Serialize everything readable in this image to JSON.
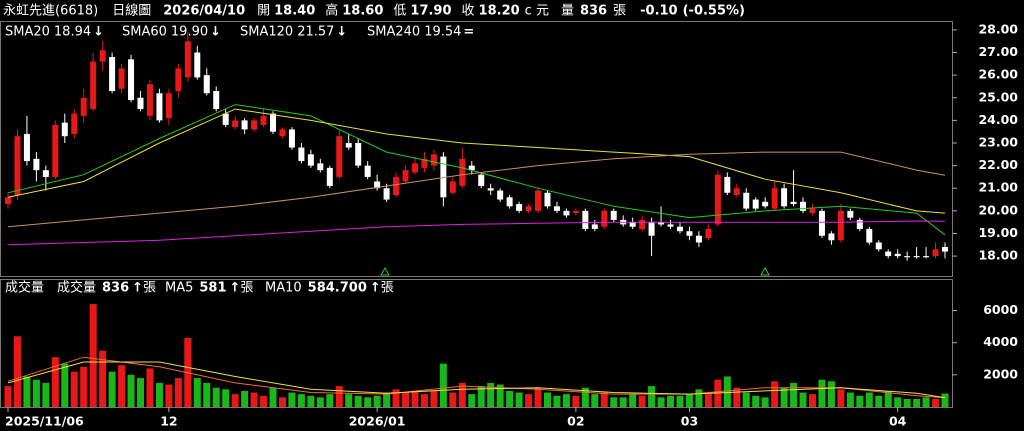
{
  "header": {
    "name": "永虹先進(6618)",
    "period": "日線圖",
    "date": "2026/04/10",
    "open_label": "開",
    "open": "18.40",
    "high_label": "高",
    "high": "18.60",
    "low_label": "低",
    "low": "17.90",
    "close_label": "收",
    "close": "18.20",
    "currency": "c 元",
    "volume_label": "量",
    "volume": "836",
    "volume_unit": "張",
    "change": "-0.10",
    "change_pct": "(-0.55%)"
  },
  "chart_data": [
    {
      "type": "candlestick",
      "up_color": "#e81818",
      "down_color": "#ffffff",
      "ylim": [
        17.12,
        28.35
      ],
      "yticks": [
        {
          "value": 18,
          "label": "18.00"
        },
        {
          "value": 19,
          "label": "19.00"
        },
        {
          "value": 20,
          "label": "20.00"
        },
        {
          "value": 21,
          "label": "21.00"
        },
        {
          "value": 22,
          "label": "22.00"
        },
        {
          "value": 23,
          "label": "23.00"
        },
        {
          "value": 24,
          "label": "24.00"
        },
        {
          "value": 25,
          "label": "25.00"
        },
        {
          "value": 26,
          "label": "26.00"
        },
        {
          "value": 27,
          "label": "27.00"
        },
        {
          "value": 28,
          "label": "28.00"
        }
      ],
      "open": [
        20.3,
        20.7,
        23.4,
        22.3,
        21.8,
        21.5,
        23.9,
        23.4,
        24.2,
        24.5,
        26.6,
        26.8,
        25.4,
        26.7,
        25.0,
        24.2,
        25.2,
        24.1,
        25.3,
        25.9,
        27.0,
        26.0,
        25.3,
        24.3,
        23.7,
        24.0,
        23.6,
        23.8,
        24.3,
        23.3,
        23.6,
        22.8,
        22.5,
        22.1,
        21.9,
        21.5,
        23.0,
        23.0,
        22.0,
        21.3,
        21.0,
        20.7,
        21.3,
        21.7,
        21.9,
        22.0,
        22.4,
        20.8,
        21.1,
        22.0,
        21.6,
        21.0,
        20.9,
        20.6,
        20.3,
        20.0,
        20.0,
        20.8,
        20.2,
        20.0,
        19.9,
        20.0,
        19.4,
        19.3,
        20.0,
        19.6,
        19.5,
        19.2,
        19.5,
        19.5,
        19.4,
        19.3,
        19.1,
        18.9,
        18.8,
        19.4,
        21.5,
        20.7,
        20.8,
        20.5,
        20.4,
        20.1,
        21.0,
        20.4,
        20.4,
        19.9,
        20.0,
        19.0,
        18.7,
        20.0,
        19.6,
        19.2,
        18.6,
        18.2,
        18.1,
        18.0,
        18.0,
        18.0,
        18.0,
        18.4
      ],
      "high": [
        20.8,
        23.6,
        24.2,
        22.6,
        22.0,
        24.0,
        24.3,
        24.5,
        25.4,
        27.0,
        27.5,
        27.0,
        26.5,
        26.9,
        25.3,
        25.8,
        25.4,
        25.4,
        26.5,
        27.9,
        27.3,
        26.3,
        25.5,
        24.5,
        24.2,
        24.1,
        24.1,
        24.5,
        24.4,
        23.7,
        23.7,
        23.0,
        22.7,
        22.3,
        22.0,
        23.6,
        23.4,
        23.2,
        22.2,
        21.6,
        21.2,
        21.7,
        22.0,
        22.4,
        22.6,
        22.7,
        22.6,
        21.5,
        22.8,
        22.2,
        21.7,
        21.2,
        21.0,
        20.7,
        20.4,
        20.3,
        21.0,
        20.9,
        20.4,
        20.1,
        20.1,
        20.1,
        19.6,
        20.1,
        20.1,
        19.8,
        19.7,
        19.8,
        19.7,
        20.2,
        19.6,
        19.5,
        19.3,
        19.1,
        19.4,
        21.8,
        21.7,
        21.2,
        21.0,
        20.6,
        20.6,
        21.3,
        21.2,
        21.8,
        20.6,
        20.3,
        20.1,
        19.1,
        20.3,
        20.1,
        19.7,
        19.3,
        18.7,
        18.3,
        18.3,
        18.2,
        18.4,
        18.4,
        18.6,
        18.6
      ],
      "low": [
        20.1,
        20.5,
        22.0,
        21.3,
        20.9,
        21.4,
        23.0,
        23.2,
        23.9,
        24.4,
        26.2,
        25.2,
        25.2,
        24.8,
        24.4,
        24.0,
        23.9,
        23.8,
        25.0,
        25.7,
        25.8,
        25.1,
        24.4,
        23.7,
        23.6,
        23.4,
        23.5,
        23.7,
        23.4,
        23.2,
        22.7,
        22.1,
        21.9,
        21.7,
        21.0,
        21.4,
        22.7,
        21.9,
        21.4,
        20.9,
        20.4,
        20.6,
        21.2,
        21.6,
        21.7,
        21.8,
        20.2,
        20.7,
        21.0,
        21.6,
        21.0,
        20.7,
        20.4,
        20.1,
        19.9,
        19.9,
        19.9,
        20.1,
        19.9,
        19.7,
        19.8,
        19.1,
        19.1,
        19.2,
        19.5,
        19.3,
        19.2,
        19.1,
        18.0,
        19.3,
        19.2,
        19.0,
        18.7,
        18.4,
        18.7,
        19.3,
        20.7,
        20.6,
        20.0,
        20.0,
        20.1,
        20.0,
        20.1,
        20.2,
        19.9,
        19.8,
        18.8,
        18.5,
        18.6,
        19.6,
        19.1,
        18.5,
        18.2,
        17.9,
        17.9,
        17.8,
        17.9,
        17.9,
        17.9,
        17.9
      ],
      "close": [
        20.6,
        23.3,
        22.2,
        21.8,
        21.5,
        23.8,
        23.3,
        24.3,
        25.0,
        26.6,
        27.1,
        25.3,
        26.3,
        24.9,
        24.5,
        25.6,
        24.0,
        25.2,
        26.3,
        27.5,
        25.9,
        25.2,
        24.5,
        23.8,
        24.0,
        23.6,
        24.0,
        24.2,
        23.5,
        23.6,
        22.8,
        22.2,
        22.0,
        21.8,
        21.1,
        23.3,
        22.8,
        22.0,
        21.5,
        21.0,
        20.5,
        21.5,
        21.8,
        22.1,
        22.3,
        22.5,
        20.6,
        21.3,
        22.3,
        21.8,
        21.1,
        20.9,
        20.5,
        20.2,
        20.0,
        20.2,
        20.9,
        20.2,
        20.0,
        19.8,
        20.0,
        19.2,
        19.2,
        20.0,
        19.6,
        19.4,
        19.3,
        19.6,
        18.9,
        19.4,
        19.3,
        19.1,
        18.9,
        18.6,
        19.2,
        21.6,
        20.8,
        21.0,
        20.1,
        20.1,
        20.2,
        21.0,
        20.2,
        20.3,
        20.0,
        20.1,
        18.9,
        18.7,
        20.0,
        19.7,
        19.2,
        18.6,
        18.3,
        18.0,
        18.0,
        17.95,
        17.95,
        17.95,
        18.3,
        18.2
      ],
      "series": [
        {
          "name": "SMA20",
          "color": "#22cc22",
          "value_label": "18.94",
          "trend": "↓",
          "trend_color": "#22cc22",
          "x": [
            0,
            8,
            16,
            24,
            32,
            40,
            48,
            56,
            64,
            72,
            80,
            88,
            96,
            99
          ],
          "values": [
            20.8,
            21.6,
            23.2,
            24.7,
            24.2,
            22.6,
            21.9,
            21.0,
            20.2,
            19.7,
            20.0,
            20.2,
            19.9,
            18.94
          ]
        },
        {
          "name": "SMA60",
          "color": "#e8e040",
          "value_label": "19.90",
          "trend": "↓",
          "trend_color": "#ff3030",
          "x": [
            0,
            8,
            16,
            24,
            32,
            40,
            48,
            56,
            64,
            72,
            80,
            88,
            96,
            99
          ],
          "values": [
            20.6,
            21.3,
            23.0,
            24.5,
            24.0,
            23.4,
            23.0,
            22.8,
            22.6,
            22.4,
            21.4,
            20.8,
            20.0,
            19.9
          ]
        },
        {
          "name": "SMA120",
          "color": "#c89060",
          "value_label": "21.57",
          "trend": "↓",
          "trend_color": "#22cc22",
          "x": [
            0,
            8,
            16,
            24,
            32,
            40,
            48,
            56,
            64,
            72,
            80,
            88,
            96,
            99
          ],
          "values": [
            19.3,
            19.6,
            19.9,
            20.2,
            20.6,
            21.1,
            21.6,
            22.0,
            22.3,
            22.5,
            22.6,
            22.6,
            21.8,
            21.57
          ]
        },
        {
          "name": "SMA240",
          "color": "#dd22dd",
          "value_label": "19.54",
          "trend": "=",
          "trend_color": "#ffffff",
          "x": [
            0,
            8,
            16,
            24,
            32,
            40,
            48,
            56,
            64,
            72,
            80,
            88,
            96,
            99
          ],
          "values": [
            18.5,
            18.6,
            18.7,
            18.9,
            19.1,
            19.3,
            19.4,
            19.45,
            19.5,
            19.5,
            19.5,
            19.5,
            19.55,
            19.54
          ]
        }
      ]
    },
    {
      "type": "bar",
      "title": "成交量",
      "legend_label": "成交量",
      "value_label": "836",
      "trend": "↑",
      "unit": "張",
      "up_color": "#e81818",
      "down_color": "#18b818",
      "ylim": [
        0,
        7900
      ],
      "yticks": [
        2000,
        4000,
        6000
      ],
      "categories": [
        "2025/11/06",
        null,
        null,
        null,
        null,
        null,
        null,
        null,
        null,
        null,
        null,
        null,
        null,
        null,
        null,
        null,
        null,
        "12",
        null,
        null,
        null,
        null,
        null,
        null,
        null,
        null,
        null,
        null,
        null,
        null,
        null,
        null,
        null,
        null,
        null,
        null,
        null,
        null,
        null,
        "2026/01",
        null,
        null,
        null,
        null,
        null,
        null,
        null,
        null,
        null,
        null,
        null,
        null,
        null,
        null,
        null,
        null,
        null,
        null,
        null,
        null,
        "02",
        null,
        null,
        null,
        null,
        null,
        null,
        null,
        null,
        null,
        null,
        null,
        "03",
        null,
        null,
        null,
        null,
        null,
        null,
        null,
        null,
        null,
        null,
        null,
        null,
        null,
        null,
        null,
        null,
        null,
        null,
        null,
        null,
        null,
        "04",
        null,
        null,
        null,
        null,
        null
      ],
      "values": [
        1300,
        4400,
        1900,
        1700,
        1500,
        3100,
        2700,
        2200,
        2500,
        6400,
        3500,
        2200,
        2600,
        2000,
        1800,
        2400,
        1500,
        1400,
        1800,
        4300,
        1800,
        1500,
        1200,
        1100,
        800,
        1000,
        900,
        700,
        1200,
        600,
        900,
        800,
        700,
        600,
        800,
        1300,
        800,
        700,
        600,
        700,
        900,
        1100,
        900,
        1000,
        800,
        1000,
        2700,
        900,
        1500,
        800,
        1300,
        1500,
        1400,
        1000,
        900,
        800,
        1200,
        900,
        700,
        800,
        700,
        1200,
        800,
        900,
        600,
        600,
        800,
        700,
        1300,
        600,
        700,
        700,
        800,
        1100,
        900,
        1700,
        1900,
        1200,
        900,
        700,
        600,
        1600,
        1200,
        1500,
        900,
        800,
        1700,
        1600,
        1100,
        900,
        700,
        900,
        700,
        1000,
        600,
        500,
        500,
        600,
        500,
        836
      ],
      "series": [
        {
          "name": "MA5",
          "color": "#f06a40",
          "value_label": "581",
          "trend": "↑",
          "unit": "張",
          "x": [
            0,
            8,
            16,
            24,
            32,
            40,
            48,
            56,
            64,
            72,
            80,
            88,
            96,
            99
          ],
          "values": [
            1600,
            3100,
            2500,
            1500,
            900,
            800,
            1300,
            1100,
            800,
            800,
            1200,
            1200,
            700,
            581
          ]
        },
        {
          "name": "MA10",
          "color": "#f0e040",
          "value_label": "584.700",
          "trend": "↑",
          "unit": "張",
          "x": [
            0,
            8,
            16,
            24,
            32,
            40,
            48,
            56,
            64,
            72,
            80,
            88,
            96,
            99
          ],
          "values": [
            1500,
            2800,
            2800,
            1900,
            1100,
            850,
            1100,
            1200,
            900,
            800,
            1000,
            1200,
            850,
            584.7
          ]
        }
      ]
    }
  ]
}
